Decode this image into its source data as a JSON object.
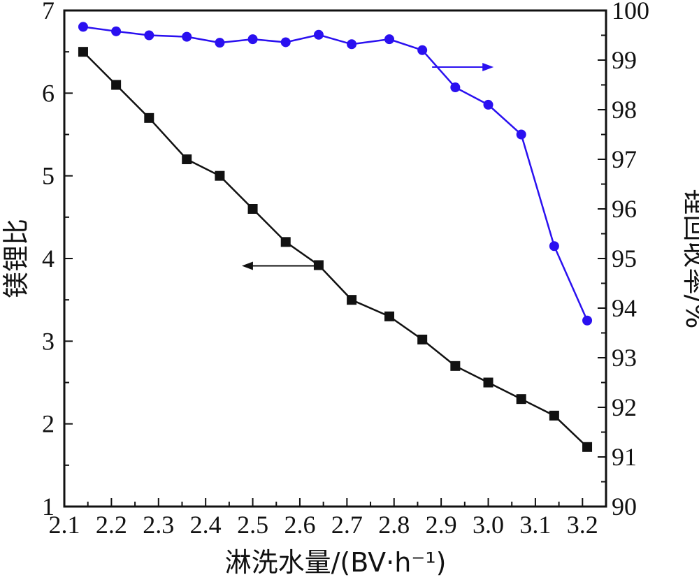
{
  "chart_data": {
    "type": "line",
    "title": "",
    "xlabel": "淋洗水量/(BV·h⁻¹)",
    "ylabel_left": "镁锂比",
    "ylabel_right": "锂回收率/%",
    "xlim": [
      2.1,
      3.25
    ],
    "ylim_left": [
      1,
      7
    ],
    "ylim_right": [
      90,
      100
    ],
    "x_ticks": [
      "2.1",
      "2.2",
      "2.3",
      "2.4",
      "2.5",
      "2.6",
      "2.7",
      "2.8",
      "2.9",
      "3.0",
      "3.1",
      "3.2"
    ],
    "y_left_ticks": [
      "1",
      "2",
      "3",
      "4",
      "5",
      "6",
      "7"
    ],
    "y_right_ticks": [
      "90",
      "91",
      "92",
      "93",
      "94",
      "95",
      "96",
      "97",
      "98",
      "99",
      "100"
    ],
    "x": [
      2.14,
      2.21,
      2.28,
      2.36,
      2.43,
      2.5,
      2.57,
      2.64,
      2.71,
      2.79,
      2.86,
      2.93,
      3.0,
      3.07,
      3.14,
      3.21
    ],
    "series": [
      {
        "axis": "left",
        "color": "#111111",
        "marker": "square",
        "values": [
          6.5,
          6.1,
          5.7,
          5.2,
          5.0,
          4.6,
          4.2,
          3.92,
          3.5,
          3.3,
          3.02,
          2.7,
          2.5,
          2.3,
          2.1,
          1.72
        ]
      },
      {
        "axis": "right",
        "color": "#2a10f0",
        "marker": "circle",
        "values": [
          99.67,
          99.58,
          99.5,
          99.47,
          99.35,
          99.42,
          99.36,
          99.51,
          99.32,
          99.42,
          99.2,
          98.45,
          98.1,
          97.5,
          95.25,
          93.75
        ]
      }
    ],
    "legend": "none",
    "grid": false,
    "annotations": [
      {
        "type": "arrow",
        "direction": "left",
        "series": "left"
      },
      {
        "type": "arrow",
        "direction": "right",
        "series": "right"
      }
    ]
  }
}
